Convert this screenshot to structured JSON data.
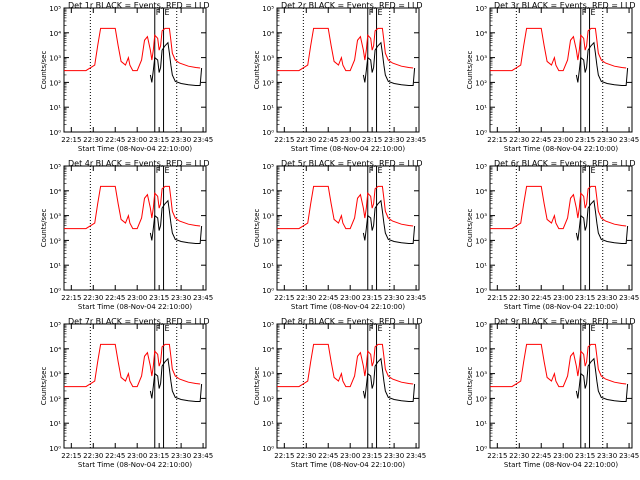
{
  "figure": {
    "common": {
      "ylabel": "Counts/sec",
      "xlabel": "Start Time (08-Nov-04 22:10:00)",
      "x_tick_labels": [
        "22:15",
        "22:30",
        "22:45",
        "23:00",
        "23:15",
        "23:30",
        "23:45"
      ],
      "y_tick_labels": [
        "10⁰",
        "10¹",
        "10²",
        "10³",
        "10⁴",
        "10⁵"
      ],
      "markers": [
        "F",
        "E"
      ],
      "colors": {
        "events": "#000000",
        "lld": "#ff0000",
        "axes": "#000000",
        "background": "#ffffff"
      }
    },
    "panels": [
      {
        "title": "Det 1r BLACK = Events, RED = LLD"
      },
      {
        "title": "Det 2r BLACK = Events, RED = LLD"
      },
      {
        "title": "Det 3r BLACK = Events, RED = LLD"
      },
      {
        "title": "Det 4r BLACK = Events, RED = LLD"
      },
      {
        "title": "Det 5r BLACK = Events, RED = LLD"
      },
      {
        "title": "Det 6r BLACK = Events, RED = LLD"
      },
      {
        "title": "Det 7r BLACK = Events, RED = LLD"
      },
      {
        "title": "Det 8r BLACK = Events, RED = LLD"
      },
      {
        "title": "Det 9r BLACK = Events, RED = LLD"
      }
    ]
  },
  "chart_data": {
    "type": "line",
    "panels": 9,
    "yscale": "log",
    "ylim": [
      1,
      100000
    ],
    "xlim": [
      "22:10",
      "23:47"
    ],
    "grid": false,
    "legend": "none",
    "vertical_lines": [
      {
        "time": "22:28",
        "style": "dotted"
      },
      {
        "time": "23:12",
        "style": "solid"
      },
      {
        "time": "23:18",
        "style": "solid"
      },
      {
        "time": "23:27",
        "style": "dotted"
      }
    ],
    "series": [
      {
        "name": "LLD",
        "color": "#ff0000",
        "points": [
          [
            "22:10",
            300
          ],
          [
            "22:25",
            300
          ],
          [
            "22:31",
            500
          ],
          [
            "22:33",
            3000
          ],
          [
            "22:35",
            15000
          ],
          [
            "22:45",
            15000
          ],
          [
            "22:47",
            3000
          ],
          [
            "22:49",
            700
          ],
          [
            "22:52",
            500
          ],
          [
            "22:54",
            1000
          ],
          [
            "22:55",
            500
          ],
          [
            "22:57",
            300
          ],
          [
            "23:00",
            300
          ],
          [
            "23:03",
            800
          ],
          [
            "23:05",
            5000
          ],
          [
            "23:07",
            7000
          ],
          [
            "23:09",
            2000
          ],
          [
            "23:10",
            800
          ],
          [
            "23:11",
            2000
          ],
          [
            "23:12",
            8000
          ],
          [
            "23:14",
            6000
          ],
          [
            "23:15",
            2000
          ],
          [
            "23:16",
            3000
          ],
          [
            "23:17",
            12000
          ],
          [
            "23:19",
            15000
          ],
          [
            "23:22",
            15000
          ],
          [
            "23:23",
            5000
          ],
          [
            "23:24",
            1500
          ],
          [
            "23:26",
            800
          ],
          [
            "23:29",
            600
          ],
          [
            "23:35",
            450
          ],
          [
            "23:40",
            400
          ],
          [
            "23:43",
            380
          ]
        ]
      },
      {
        "name": "Events",
        "color": "#000000",
        "points": [
          [
            "23:09",
            200
          ],
          [
            "23:10",
            100
          ],
          [
            "23:11",
            300
          ],
          [
            "23:12",
            1000
          ],
          [
            "23:14",
            800
          ],
          [
            "23:15",
            250
          ],
          [
            "23:16",
            400
          ],
          [
            "23:17",
            2000
          ],
          [
            "23:19",
            3000
          ],
          [
            "23:21",
            4000
          ],
          [
            "23:22",
            1500
          ],
          [
            "23:23",
            500
          ],
          [
            "23:24",
            200
          ],
          [
            "23:26",
            110
          ],
          [
            "23:30",
            90
          ],
          [
            "23:35",
            80
          ],
          [
            "23:40",
            75
          ],
          [
            "23:43",
            75
          ],
          [
            "23:44",
            380
          ]
        ]
      }
    ]
  }
}
